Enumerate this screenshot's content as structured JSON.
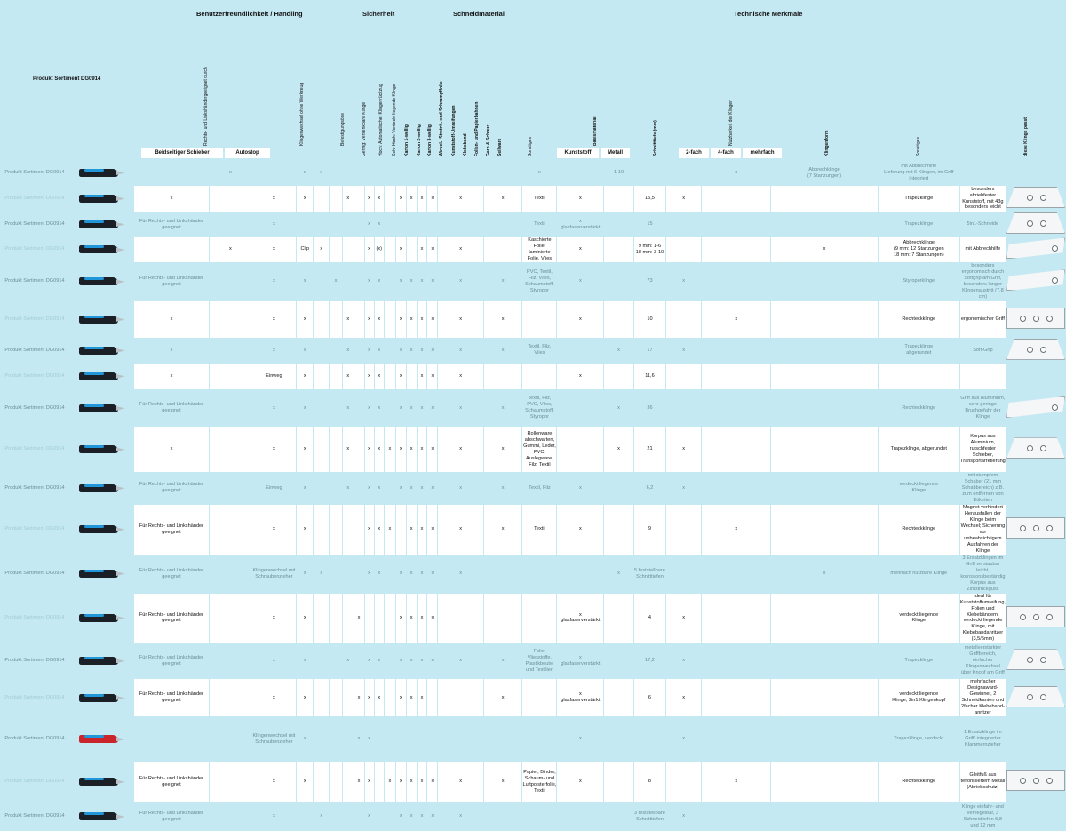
{
  "product_title": "Produkt Sortiment DG0914",
  "groups": {
    "handling": "Benutzerfreundlichkeit / Handling",
    "safety": "Sicherheit",
    "material": "Schneidmaterial",
    "tech": "Technische Merkmale"
  },
  "headers": {
    "lefthand": "Rechts- und Linkshändergeeignet durch",
    "toolfree": "Klingenwechsel ohne Werkzeug",
    "mount": "Befestigungsöse",
    "s1": "Gering: Versenkbare Klinge",
    "s2": "Hoch: Automatischer Klingenrückzug",
    "s3": "Sehr Hoch: Verdeckt liegende Klinge",
    "m1": "Karton 1-wellig",
    "m2": "Karton 2-wellig",
    "m3": "Karton 3-wellig",
    "m4": "Wickel-, Stretch- und Schrumpffolie",
    "m5": "Kunststoff-Umreifungen",
    "m6": "Klebeband",
    "m7": "Folien- und Papierbahnen",
    "m8": "Garn & Schnur",
    "m9": "Seilware",
    "other": "Sonstiges",
    "basematerial": "Basismaterial",
    "depth": "Schnitttiefe (mm)",
    "usability": "Nutzbarkeit der Klingen",
    "bladeform": "Klingenform",
    "other2": "Sonstiges",
    "fits": "diese Klinge passt"
  },
  "subheaders": {
    "slider": "Beidseitiger Schieber",
    "autostop": "Autostop",
    "plastic": "Kunststoff",
    "metal": "Metall",
    "two": "2-fach",
    "four": "4-fach",
    "multi": "mehrfach"
  },
  "rows": [
    {
      "f": true,
      "name": "Produkt Sortiment DG0914",
      "c": [
        "",
        "x",
        "",
        "x",
        "x",
        "",
        "",
        "",
        "",
        "",
        "",
        "",
        "",
        "",
        "",
        "",
        "",
        "x",
        "",
        "1-10",
        "",
        "",
        "x",
        "Abbrechklinge\n(7 Stanzungen)",
        "mit Abbrechhilfe\nLieferung mit 6 Klingen, im Griff integriert"
      ]
    },
    {
      "f": false,
      "name": "Produkt Sortiment DG0914",
      "c": [
        "x",
        "",
        "x",
        "x",
        "",
        "",
        "x",
        "",
        "x",
        "x",
        "",
        "x",
        "x",
        "x",
        "x",
        "x",
        "x",
        "Textil",
        "x",
        "",
        "15,5",
        "x",
        "",
        "",
        "Trapezklinge",
        "besonders abriebfester Kunststoff, mit 43g besonders leicht"
      ]
    },
    {
      "f": true,
      "name": "Produkt Sortiment DG0914",
      "c": [
        "Für Rechts- und Linkshänder geeignet",
        "",
        "x",
        "",
        "",
        "",
        "",
        "",
        "x",
        "x",
        "",
        "",
        "",
        "",
        "",
        "",
        "",
        "Textil",
        "x\nglasfaserverstärkt",
        "",
        "15",
        "",
        "",
        "",
        "Trapezklinge",
        "5in1-Schneide"
      ]
    },
    {
      "f": false,
      "name": "Produkt Sortiment DG0914",
      "c": [
        "",
        "x",
        "x",
        "Clip",
        "x",
        "",
        "",
        "",
        "x",
        "(x)",
        "",
        "x",
        "",
        "x",
        "x",
        "x",
        "",
        "Kaschierte Folie, laminierte Folie, Vlies",
        "x",
        "",
        "9 mm: 1-6\n18 mm: 3-10",
        "",
        "",
        "x",
        "Abbrechklinge\n(9 mm: 12 Stanzungen\n18 mm: 7 Stanzungen)",
        "mit Abbrechhilfe"
      ]
    },
    {
      "f": true,
      "name": "Produkt Sortiment DG0914",
      "c": [
        "Für Rechts- und Linkshänder geeignet",
        "",
        "x",
        "x",
        "",
        "x",
        "",
        "",
        "x",
        "x",
        "",
        "x",
        "x",
        "x",
        "x",
        "x",
        "x",
        "PVC, Textil, Filz, Vlies, Schaumstoff, Styropor",
        "x",
        "",
        "73",
        "x",
        "",
        "",
        "Styroporklinge",
        "besonders ergonomisch durch Softgrip am Griff, besonders langer Klingenaustritt (7,8 cm)"
      ]
    },
    {
      "f": false,
      "name": "Produkt Sortiment DG0914",
      "c": [
        "x",
        "",
        "x",
        "x",
        "",
        "",
        "x",
        "",
        "x",
        "x",
        "",
        "x",
        "x",
        "x",
        "x",
        "x",
        "x",
        "",
        "x",
        "",
        "10",
        "",
        "x",
        "",
        "Rechteckklinge",
        "ergonomischer Griff"
      ]
    },
    {
      "f": true,
      "name": "Produkt Sortiment DG0914",
      "c": [
        "x",
        "",
        "x",
        "x",
        "",
        "",
        "x",
        "",
        "x",
        "x",
        "",
        "x",
        "x",
        "x",
        "x",
        "x",
        "x",
        "Textil, Filz, Vlies",
        "",
        "x",
        "17",
        "x",
        "",
        "",
        "Trapezklinge\nabgerundet",
        "Soft-Grip"
      ]
    },
    {
      "f": false,
      "name": "Produkt Sortiment DG0914",
      "c": [
        "x",
        "",
        "Einweg",
        "x",
        "",
        "",
        "x",
        "",
        "x",
        "x",
        "",
        "x",
        "",
        "x",
        "x",
        "x",
        "",
        "",
        "x",
        "",
        "11,6",
        "",
        "",
        "",
        "",
        ""
      ]
    },
    {
      "f": true,
      "name": "Produkt Sortiment DG0914",
      "c": [
        "Für Rechts- und Linkshänder geeignet",
        "",
        "x",
        "x",
        "",
        "",
        "x",
        "",
        "x",
        "x",
        "",
        "x",
        "x",
        "x",
        "x",
        "x",
        "x",
        "Textil, Filz, PVC, Vlies, Schaumstoff, Styropor",
        "",
        "x",
        "36",
        "",
        "",
        "",
        "Rechteckklinge",
        "Griff aus Aluminium, sehr geringe Bruchgefahr der Klinge"
      ]
    },
    {
      "f": false,
      "name": "Produkt Sortiment DG0914",
      "c": [
        "x",
        "",
        "x",
        "x",
        "",
        "",
        "x",
        "",
        "x",
        "x",
        "x",
        "x",
        "x",
        "x",
        "x",
        "x",
        "x",
        "Rollenware abschwarten, Gummi, Leder, PVC, Auslegware, Filz, Textil",
        "",
        "x",
        "21",
        "x",
        "",
        "",
        "Trapezklinge, abgerundet",
        "Korpus aus Aluminium, rutschfester Schieber, Transportarretierung"
      ]
    },
    {
      "f": true,
      "name": "Produkt Sortiment DG0914",
      "c": [
        "Für Rechts- und Linkshänder geeignet",
        "",
        "Einweg",
        "x",
        "",
        "",
        "x",
        "",
        "x",
        "x",
        "",
        "x",
        "x",
        "x",
        "x",
        "x",
        "x",
        "Textil, Filz",
        "x",
        "",
        "6,2",
        "x",
        "",
        "",
        "verdeckt liegende\nKlinge",
        "mit stumpfem Schaber (21 mm Schabbereich) z.B. zum entfernen von Etiketten"
      ]
    },
    {
      "f": false,
      "name": "Produkt Sortiment DG0914",
      "c": [
        "Für Rechts- und Linkshänder geeignet",
        "",
        "x",
        "x",
        "",
        "",
        "",
        "",
        "x",
        "x",
        "x",
        "",
        "x",
        "x",
        "x",
        "x",
        "x",
        "Textil",
        "x",
        "",
        "9",
        "",
        "x",
        "",
        "Rechteckklinge",
        "Magnet verhindert Herausfallen der Klinge beim Wechsel; Sicherung vor unbeabsichtigem Ausfahren der Klinge"
      ]
    },
    {
      "f": true,
      "name": "Produkt Sortiment DG0914",
      "c": [
        "Für Rechts- und Linkshänder geeignet",
        "",
        "Klingenwechsel mit Schraubenzieher",
        "x",
        "x",
        "",
        "",
        "",
        "x",
        "x",
        "",
        "x",
        "x",
        "x",
        "x",
        "x",
        "",
        "",
        "",
        "x",
        "5 feststellbare\nSchnitttiefen",
        "",
        "",
        "x",
        "mehrfach nutzbare Klinge",
        "3 Ersatzklingen im Griff verstaubar\nleicht, korrosionsbeständig\nKorpus aus Zinkdruckguss"
      ]
    },
    {
      "f": false,
      "name": "Produkt Sortiment DG0914",
      "c": [
        "Für Rechts- und Linkshänder geeignet",
        "",
        "x",
        "x",
        "",
        "",
        "",
        "x",
        "",
        "",
        "",
        "x",
        "x",
        "x",
        "x",
        "",
        "",
        "",
        "x\nglasfaserverstärkt",
        "",
        "4",
        "x",
        "",
        "",
        "verdeckt liegende\nKlinge",
        "ideal für Kunststoffumreifung, Folien und Klebebändern, verdeckt liegende Klinge, mit Klebebandanritzer (3,5/5mm)"
      ]
    },
    {
      "f": true,
      "name": "Produkt Sortiment DG0914",
      "c": [
        "Für Rechts- und Linkshänder geeignet",
        "",
        "x",
        "x",
        "",
        "",
        "x",
        "",
        "x",
        "x",
        "",
        "x",
        "x",
        "x",
        "x",
        "x",
        "x",
        "Folie, Vliesstoffe, Plastikbeutel und Textilien",
        "x\nglasfaserverstärkt",
        "",
        "17,2",
        "x",
        "",
        "",
        "Trapezklinge",
        "metallverstärkter Griffbereich, einfacher Klingenwechsel über Knopf am Griff"
      ]
    },
    {
      "f": false,
      "name": "Produkt Sortiment DG0914",
      "c": [
        "Für Rechts- und Linkshänder geeignet",
        "",
        "x",
        "x",
        "",
        "",
        "",
        "x",
        "x",
        "x",
        "",
        "x",
        "x",
        "x",
        "",
        "",
        "x",
        "",
        "x\nglasfaserverstärkt",
        "",
        "6",
        "x",
        "",
        "",
        "verdeckt liegende\nKlinge, 2in1 Klingenkopf",
        "mehrfacher Designaward-Gewinner, 2 Schneidkanten und 2facher Klebeband-anritzer"
      ]
    },
    {
      "f": true,
      "name": "Produkt Sortiment DG0914",
      "c": [
        "",
        "",
        "Klingenwechsel mit Schraubenzieher",
        "x",
        "",
        "",
        "",
        "x",
        "x",
        "",
        "",
        "",
        "",
        "",
        "",
        "",
        "",
        "",
        "x",
        "",
        "",
        "x",
        "",
        "",
        "Trapezklinge, verdeckt",
        "1 Ersatzklinge im Griff, integrierter Klammernzieher"
      ]
    },
    {
      "f": false,
      "name": "Produkt Sortiment DG0914",
      "c": [
        "Für Rechts- und Linkshänder geeignet",
        "",
        "x",
        "x",
        "",
        "",
        "",
        "x",
        "x",
        "",
        "x",
        "x",
        "x",
        "x",
        "x",
        "x",
        "x",
        "Papier, Binder, Schaum- und Luftpolsterfolie, Textil",
        "x",
        "",
        "8",
        "",
        "x",
        "",
        "Rechteckklinge",
        "Gleitfuß aus teflonisiertem Metall (Abriebschutz)"
      ]
    },
    {
      "f": true,
      "name": "Produkt Sortiment DG0914",
      "c": [
        "Für Rechts- und Linkshänder geeignet",
        "",
        "x",
        "",
        "x",
        "",
        "",
        "",
        "x",
        "",
        "",
        "x",
        "x",
        "x",
        "x",
        "x",
        "",
        "",
        "",
        "",
        "3 feststellbare\nSchnitttiefen",
        "x",
        "",
        "",
        "",
        "Klinge einfahr- und verriegelbar, 3 Schneidtiefen 5,8 und 12 mm"
      ]
    }
  ]
}
